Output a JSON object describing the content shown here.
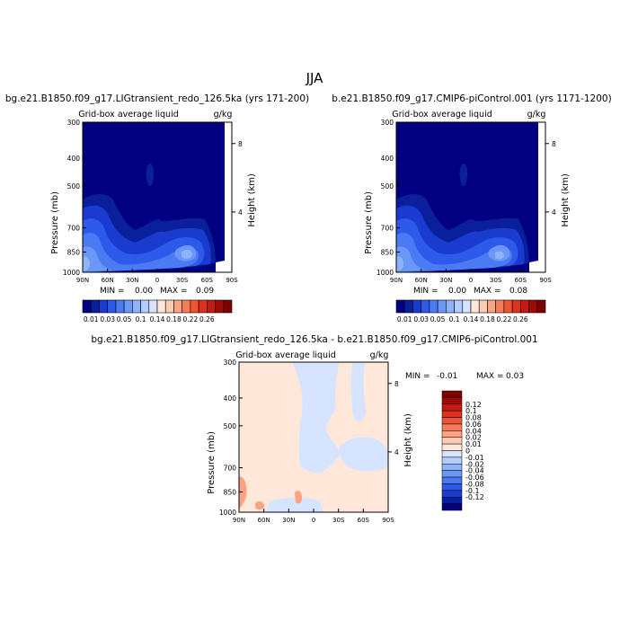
{
  "figure": {
    "title": "JJA"
  },
  "colors": {
    "blues": [
      "#000080",
      "#0a1f9c",
      "#1a3bd0",
      "#2d5ae8",
      "#4a7bf2",
      "#6b97f7",
      "#8fb3fa",
      "#b3ccfc",
      "#d6e4ff"
    ],
    "reds": [
      "#ffe8da",
      "#ffcbb3",
      "#fca383",
      "#f77d5a",
      "#ef5535",
      "#dc3220",
      "#c41a12",
      "#a00a05",
      "#7e0000"
    ]
  },
  "chart_data": [
    {
      "type": "heatmap",
      "id": "left",
      "title": "bg.e21.B1850.f09_g17.LIGtransient_redo_126.5ka (yrs 171-200)",
      "variable": "Grid-box average liquid",
      "units": "g/kg",
      "ylabel": "Pressure (mb)",
      "ylabel_right": "Height (km)",
      "x_ticks": [
        "90N",
        "60N",
        "30N",
        "0",
        "30S",
        "60S",
        "90S"
      ],
      "y_ticks": [
        300,
        400,
        500,
        700,
        850,
        1000
      ],
      "height_ticks": [
        8,
        4
      ],
      "min_label": "MIN =",
      "min": "0.00",
      "max_label": "MAX =",
      "max": "0.09",
      "colorbar_labels": [
        "0.01",
        "0.03",
        "0.05",
        "0.1",
        "0.14",
        "0.18",
        "0.22",
        "0.26"
      ]
    },
    {
      "type": "heatmap",
      "id": "right",
      "title": "b.e21.B1850.f09_g17.CMIP6-piControl.001 (yrs 1171-1200)",
      "variable": "Grid-box average liquid",
      "units": "g/kg",
      "ylabel": "Pressure (mb)",
      "ylabel_right": "Height (km)",
      "x_ticks": [
        "90N",
        "60N",
        "30N",
        "0",
        "30S",
        "60S",
        "90S"
      ],
      "y_ticks": [
        300,
        400,
        500,
        700,
        850,
        1000
      ],
      "height_ticks": [
        8,
        4
      ],
      "min_label": "MIN =",
      "min": "0.00",
      "max_label": "MAX =",
      "max": "0.08",
      "colorbar_labels": [
        "0.01",
        "0.03",
        "0.05",
        "0.1",
        "0.14",
        "0.18",
        "0.22",
        "0.26"
      ]
    },
    {
      "type": "heatmap",
      "id": "diff",
      "title": "bg.e21.B1850.f09_g17.LIGtransient_redo_126.5ka - b.e21.B1850.f09_g17.CMIP6-piControl.001",
      "variable": "Grid-box average liquid",
      "units": "g/kg",
      "ylabel": "Pressure (mb)",
      "ylabel_right": "Height (km)",
      "x_ticks": [
        "90N",
        "60N",
        "30N",
        "0",
        "30S",
        "60S",
        "90S"
      ],
      "y_ticks": [
        300,
        400,
        500,
        700,
        850,
        1000
      ],
      "height_ticks": [
        8,
        4
      ],
      "min_label": "MIN =",
      "min": "-0.01",
      "max_label": "MAX =",
      "max": "0.03",
      "colorbar_labels": [
        "0.12",
        "0.1",
        "0.08",
        "0.06",
        "0.04",
        "0.02",
        "0.01",
        "0",
        "-0.01",
        "-0.02",
        "-0.04",
        "-0.06",
        "-0.08",
        "-0.1",
        "-0.12"
      ]
    }
  ]
}
